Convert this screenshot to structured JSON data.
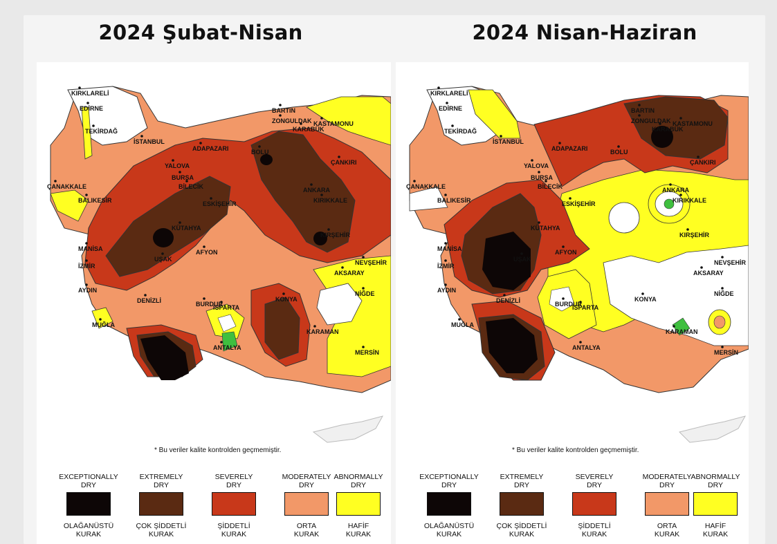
{
  "panels": [
    {
      "title": "2024 Şubat-Nisan",
      "cities": [
        "KIRKLARELİ",
        "EDİRNE",
        "TEKİRDAĞ",
        "İSTANBUL",
        "BARTIN",
        "ZONGULDAK",
        "KARABÜK",
        "KASTAMONU",
        "ADAPAZARI",
        "BOLU",
        "YALOVA",
        "BURSA",
        "BİLECİK",
        "ÇANKIRI",
        "ÇANAKKALE",
        "ANKARA",
        "KIRIKKALE",
        "ESKİŞEHİR",
        "BALIKESİR",
        "KÜTAHYA",
        "KIRŞEHİR",
        "MANİSA",
        "AFYON",
        "NEVŞEHİR",
        "İZMİR",
        "UŞAK",
        "AKSARAY",
        "AYDIN",
        "DENİZLİ",
        "BURDUR",
        "ISPARTA",
        "KONYA",
        "NİĞDE",
        "MUĞLA",
        "KARAMAN",
        "ANTALYA",
        "MERSİN"
      ]
    },
    {
      "title": "2024 Nisan-Haziran",
      "cities": [
        "KIRKLARELİ",
        "EDİRNE",
        "TEKİRDAĞ",
        "İSTANBUL",
        "BARTIN",
        "ZONGULDAK",
        "KARABÜK",
        "KASTAMONU",
        "ADAPAZARI",
        "BOLU",
        "YALOVA",
        "BURSA",
        "BİLECİK",
        "ÇANKIRI",
        "ÇANAKKALE",
        "ANKARA",
        "KIRIKKALE",
        "ESKİŞEHİR",
        "BALIKESİR",
        "KÜTAHYA",
        "KIRŞEHİR",
        "MANİSA",
        "AFYON",
        "NEVŞEHİR",
        "İZMİR",
        "UŞAK",
        "AKSARAY",
        "AYDIN",
        "DENİZLİ",
        "BURDUR",
        "ISPARTA",
        "KONYA",
        "NİĞDE",
        "MUĞLA",
        "KARAMAN",
        "ANTALYA",
        "MERSİN"
      ]
    }
  ],
  "note": "* Bu veriler kalite kontrolden geçmemiştir.",
  "legend": [
    {
      "en": "EXCEPTIONALLY\nDRY",
      "tr": "OLAĞANÜSTÜ\nKURAK",
      "color": "#0d0606"
    },
    {
      "en": "EXTREMELY\nDRY",
      "tr": "ÇOK ŞİDDETLİ\nKURAK",
      "color": "#5a2a12"
    },
    {
      "en": "SEVERELY\nDRY",
      "tr": "ŞİDDETLİ\nKURAK",
      "color": "#c8381a"
    },
    {
      "en": "MODERATELY\nDRY",
      "tr": "ORTA\nKURAK",
      "color": "#f29868"
    },
    {
      "en": "ABNORMALLY\nDRY",
      "tr": "HAFİF\nKURAK",
      "color": "#ffff22"
    }
  ],
  "colors": {
    "exceptional": "#0d0606",
    "extreme": "#5a2a12",
    "severe": "#c8381a",
    "moderate": "#f29868",
    "abnormal": "#ffff22",
    "wet": "#3fbf3f"
  }
}
